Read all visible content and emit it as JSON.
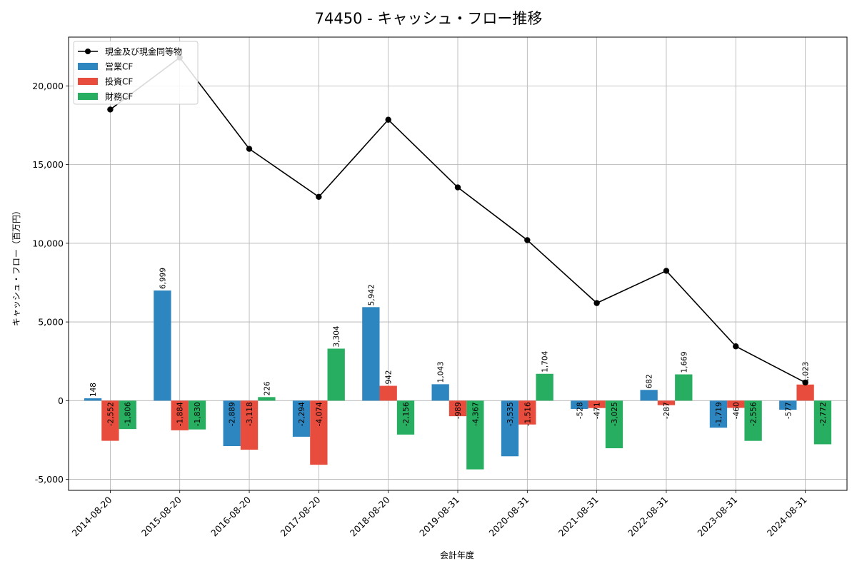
{
  "chart_data": {
    "type": "bar",
    "title": "74450 - キャッシュ・フロー推移",
    "xlabel": "会計年度",
    "ylabel": "キャッシュ・フロー（百万円）",
    "categories": [
      "2014-08-20",
      "2015-08-20",
      "2016-08-20",
      "2017-08-20",
      "2018-08-20",
      "2019-08-31",
      "2020-08-31",
      "2021-08-31",
      "2022-08-31",
      "2023-08-31",
      "2024-08-31"
    ],
    "ylim": [
      -5700,
      23100
    ],
    "yticks": [
      -5000,
      0,
      5000,
      10000,
      15000,
      20000
    ],
    "ytick_labels": [
      "-5,000",
      "0",
      "5,000",
      "10,000",
      "15,000",
      "20,000"
    ],
    "grid": true,
    "legend_position": "top-left",
    "series": [
      {
        "name": "現金及び現金同等物",
        "kind": "line",
        "color": "#000000",
        "values": [
          18500,
          21800,
          16000,
          12950,
          17850,
          13550,
          10200,
          6200,
          8250,
          3450,
          1150
        ]
      },
      {
        "name": "営業CF",
        "kind": "bar",
        "color": "#2e86c1",
        "values": [
          148,
          6999,
          -2889,
          -2294,
          5942,
          1043,
          -3535,
          -528,
          682,
          -1719,
          -577
        ],
        "labels": [
          "148",
          "6,999",
          "-2,889",
          "-2,294",
          "5,942",
          "1,043",
          "-3,535",
          "-528",
          "682",
          "-1,719",
          "-577"
        ]
      },
      {
        "name": "投資CF",
        "kind": "bar",
        "color": "#e74c3c",
        "values": [
          -2552,
          -1884,
          -3118,
          -4074,
          942,
          -989,
          -1516,
          -471,
          -287,
          -460,
          1023
        ],
        "labels": [
          "-2,552",
          "-1,884",
          "-3,118",
          "-4,074",
          "942",
          "-989",
          "-1,516",
          "-471",
          "-287",
          "-460",
          "1,023"
        ]
      },
      {
        "name": "財務CF",
        "kind": "bar",
        "color": "#27ae60",
        "values": [
          -1806,
          -1830,
          226,
          3304,
          -2156,
          -4367,
          1704,
          -3025,
          1669,
          -2556,
          -2772
        ],
        "labels": [
          "-1,806",
          "-1,830",
          "226",
          "3,304",
          "-2,156",
          "-4,367",
          "1,704",
          "-3,025",
          "1,669",
          "-2,556",
          "-2,772"
        ]
      }
    ]
  }
}
